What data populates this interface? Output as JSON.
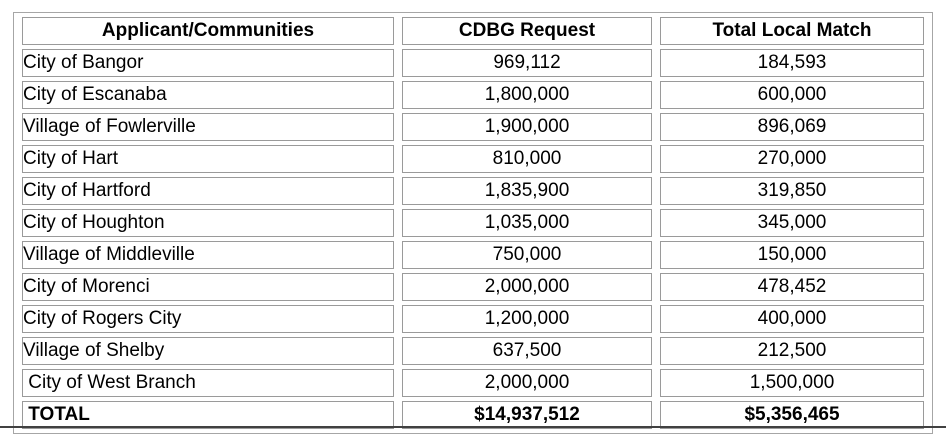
{
  "table": {
    "headers": {
      "applicant": "Applicant/Communities",
      "cdbg": "CDBG Request",
      "match": "Total Local Match"
    },
    "rows": [
      {
        "applicant": "City of Bangor",
        "cdbg": "969,112",
        "match": "184,593"
      },
      {
        "applicant": "City of Escanaba",
        "cdbg": "1,800,000",
        "match": "600,000"
      },
      {
        "applicant": "Village of Fowlerville",
        "cdbg": "1,900,000",
        "match": "896,069"
      },
      {
        "applicant": "City of Hart",
        "cdbg": "810,000",
        "match": "270,000"
      },
      {
        "applicant": "City of Hartford",
        "cdbg": "1,835,900",
        "match": "319,850"
      },
      {
        "applicant": "City of Houghton",
        "cdbg": "1,035,000",
        "match": "345,000"
      },
      {
        "applicant": "Village of Middleville",
        "cdbg": "750,000",
        "match": "150,000"
      },
      {
        "applicant": "City of Morenci",
        "cdbg": "2,000,000",
        "match": "478,452"
      },
      {
        "applicant": "City of Rogers City",
        "cdbg": "1,200,000",
        "match": "400,000"
      },
      {
        "applicant": "Village of Shelby",
        "cdbg": "637,500",
        "match": "212,500"
      },
      {
        "applicant": " City of West Branch",
        "cdbg": "2,000,000",
        "match": "1,500,000"
      }
    ],
    "total": {
      "applicant": " TOTAL",
      "cdbg": "$14,937,512",
      "match": "$5,356,465"
    }
  },
  "colors": {
    "cell_border": "#9a9a9a",
    "outer_border": "#a6a6a6",
    "bottom_rule": "#414141",
    "text": "#000000",
    "background": "#ffffff"
  }
}
